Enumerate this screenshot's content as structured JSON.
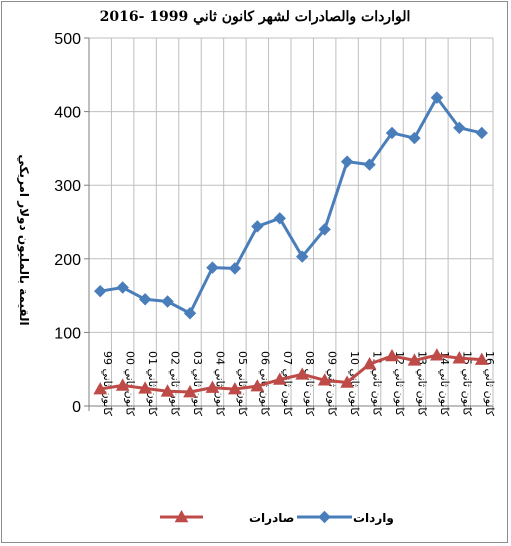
{
  "chart_data": {
    "type": "line",
    "title": "الواردات والصادرات لشهر كانون ثاني 1999 -2016",
    "xlabel": "",
    "ylabel": "القيمة بالمليون دولار امريكي",
    "ylim": [
      0,
      500
    ],
    "yticks": [
      "0",
      "100",
      "200",
      "300",
      "400",
      "500"
    ],
    "grid": true,
    "legend_position": "bottom",
    "categories": [
      "كانون ثاني 99",
      "كانون ثاني 00",
      "كانون ثاني 01",
      "كانون ثاني 02",
      "كانون ثاني 03",
      "كانون ثاني 04",
      "كانون ثاني 05",
      "كانون ثاني 06",
      "كانون ثاني 07",
      "كانون ثاني 08",
      "كانون ثاني 09",
      "كانون ثاني 10",
      "كانون ثاني 11",
      "كانون ثاني 12",
      "كانون ثاني 13",
      "كانون ثاني 14",
      "كانون ثاني 15",
      "كانون ثاني 16"
    ],
    "series": [
      {
        "name": "واردات",
        "color": "#4a7ebb",
        "marker": "diamond",
        "values": [
          156,
          161,
          145,
          142,
          126,
          188,
          187,
          244,
          255,
          203,
          240,
          332,
          328,
          371,
          364,
          419,
          378,
          371
        ]
      },
      {
        "name": "صادرات",
        "color": "#be4b48",
        "marker": "triangle",
        "values": [
          23,
          28,
          24,
          20,
          19,
          25,
          23,
          27,
          36,
          43,
          35,
          32,
          57,
          68,
          62,
          69,
          65,
          63
        ]
      }
    ]
  }
}
